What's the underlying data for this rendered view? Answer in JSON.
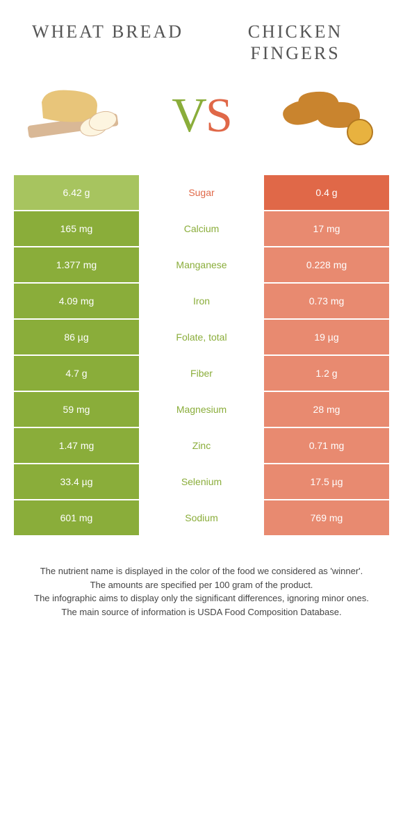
{
  "header": {
    "left_title": "WHEAT BREAD",
    "right_title": "CHICKEN FINGERS"
  },
  "vs": {
    "v": "V",
    "s": "S"
  },
  "colors": {
    "left": "#8aad3a",
    "right": "#e06848",
    "left_dim": "#a7c45f",
    "right_dim": "#e88a70"
  },
  "rows": [
    {
      "left": "6.42 g",
      "label": "Sugar",
      "right": "0.4 g",
      "winner": "right"
    },
    {
      "left": "165 mg",
      "label": "Calcium",
      "right": "17 mg",
      "winner": "left"
    },
    {
      "left": "1.377 mg",
      "label": "Manganese",
      "right": "0.228 mg",
      "winner": "left"
    },
    {
      "left": "4.09 mg",
      "label": "Iron",
      "right": "0.73 mg",
      "winner": "left"
    },
    {
      "left": "86 µg",
      "label": "Folate, total",
      "right": "19 µg",
      "winner": "left"
    },
    {
      "left": "4.7 g",
      "label": "Fiber",
      "right": "1.2 g",
      "winner": "left"
    },
    {
      "left": "59 mg",
      "label": "Magnesium",
      "right": "28 mg",
      "winner": "left"
    },
    {
      "left": "1.47 mg",
      "label": "Zinc",
      "right": "0.71 mg",
      "winner": "left"
    },
    {
      "left": "33.4 µg",
      "label": "Selenium",
      "right": "17.5 µg",
      "winner": "left"
    },
    {
      "left": "601 mg",
      "label": "Sodium",
      "right": "769 mg",
      "winner": "left"
    }
  ],
  "footer": {
    "line1": "The nutrient name is displayed in the color of the food we considered as 'winner'.",
    "line2": "The amounts are specified per 100 gram of the product.",
    "line3": "The infographic aims to display only the significant differences, ignoring minor ones.",
    "line4": "The main source of information is USDA Food Composition Database."
  }
}
